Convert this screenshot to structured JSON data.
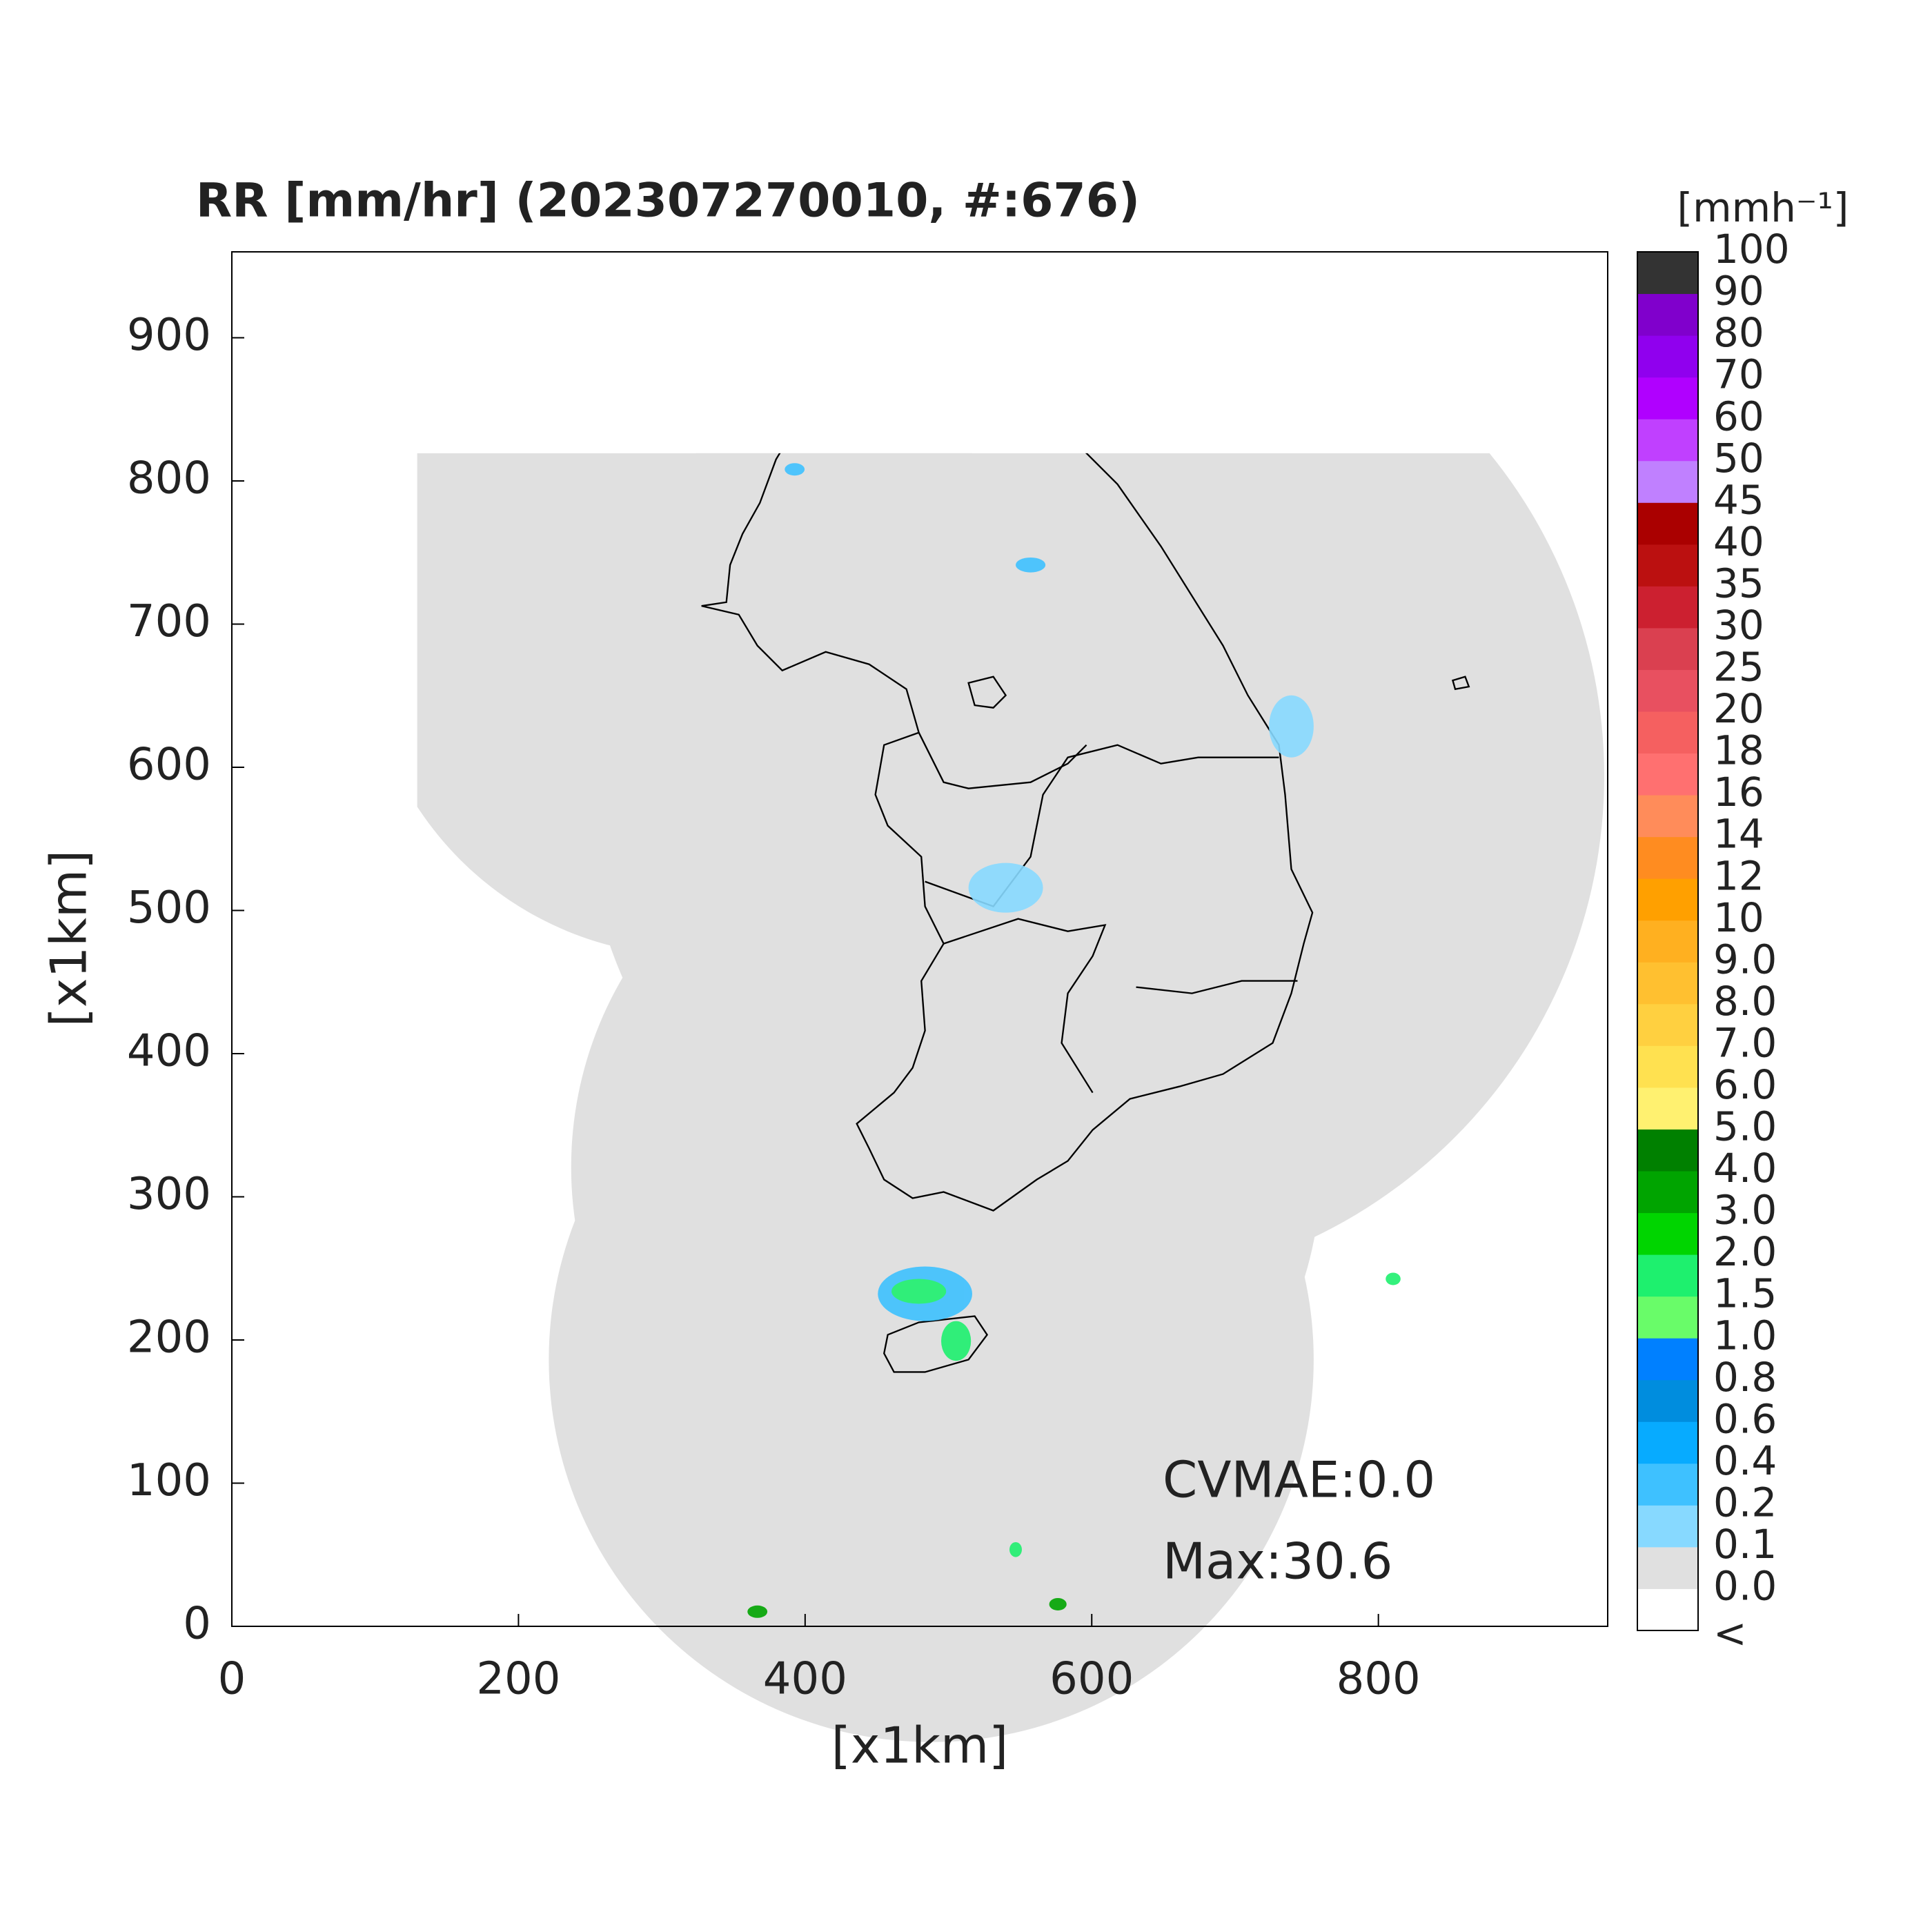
{
  "chart_data": {
    "type": "radar-map",
    "title": "RR [mm/hr] (202307270010, #:676)",
    "x_label": "[x1km]",
    "y_label": "[x1km]",
    "xlim": [
      0,
      960
    ],
    "ylim": [
      0,
      960
    ],
    "xticks": [
      0,
      200,
      400,
      600,
      800
    ],
    "yticks": [
      0,
      100,
      200,
      300,
      400,
      500,
      600,
      700,
      800,
      900
    ],
    "annotations": [
      "CVMAE:0.0",
      "Max:30.6"
    ],
    "colorbar": {
      "label": "[mmh⁻¹]",
      "ticks": [
        "<",
        {
          "value": 0,
          "label": "0.0"
        },
        0.1,
        0.2,
        0.4,
        0.6,
        0.8,
        {
          "value": 1,
          "label": "1.0"
        },
        1.5,
        {
          "value": 2,
          "label": "2.0"
        },
        {
          "value": 3,
          "label": "3.0"
        },
        {
          "value": 4,
          "label": "4.0"
        },
        {
          "value": 5,
          "label": "5.0"
        },
        {
          "value": 6,
          "label": "6.0"
        },
        {
          "value": 7,
          "label": "7.0"
        },
        {
          "value": 8,
          "label": "8.0"
        },
        {
          "value": 9,
          "label": "9.0"
        },
        10,
        12,
        14,
        16,
        18,
        20,
        25,
        30,
        35,
        40,
        45,
        50,
        60,
        70,
        80,
        90,
        100
      ],
      "colors": [
        "#ffffff",
        "#e0e0e0",
        "#87d9ff",
        "#3ec1ff",
        "#07abff",
        "#008dde",
        "#0080ff",
        "#69fc69",
        "#1ef06e",
        "#00d500",
        "#00a400",
        "#008000",
        "#fff170",
        "#ffe150",
        "#ffd040",
        "#ffc030",
        "#ffb020",
        "#ffa000",
        "#ff8c20",
        "#ff8c5a",
        "#ff7070",
        "#f56060",
        "#e85060",
        "#da4050",
        "#cc2030",
        "#bb1010",
        "#aa0000",
        "#c080ff",
        "#c040ff",
        "#b000ff",
        "#9000ee",
        "#8000cc",
        "#333333"
      ]
    }
  }
}
